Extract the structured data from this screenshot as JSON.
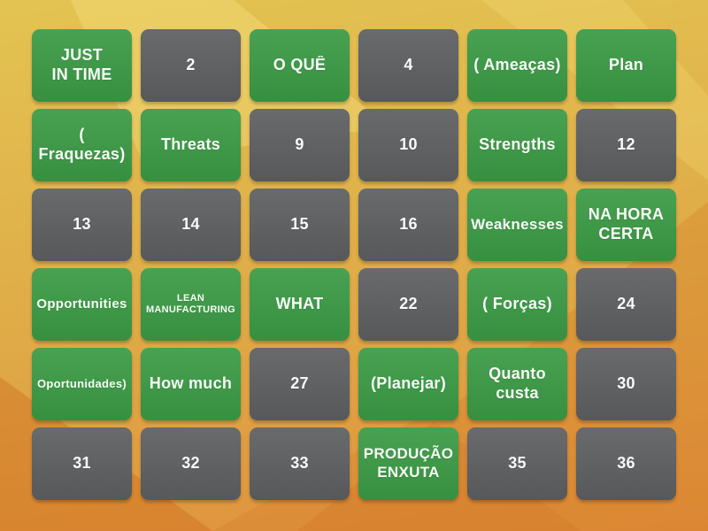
{
  "theme": {
    "background_top": "#e3c452",
    "background_mid": "#dfaa47",
    "background_bottom": "#e08f3c",
    "tile_revealed_color": "#3b9a45",
    "tile_hidden_color": "#5d5f61",
    "tile_text_color": "#f7fcf7"
  },
  "board": {
    "columns": 6,
    "rows": 6,
    "tiles": [
      {
        "label": "JUST\nIN TIME",
        "state": "revealed"
      },
      {
        "label": "2",
        "state": "hidden"
      },
      {
        "label": "O QUÊ",
        "state": "revealed"
      },
      {
        "label": "4",
        "state": "hidden"
      },
      {
        "label": "( Ameaças)",
        "state": "revealed"
      },
      {
        "label": "Plan",
        "state": "revealed"
      },
      {
        "label": "(\nFraquezas)",
        "state": "revealed"
      },
      {
        "label": "Threats",
        "state": "revealed"
      },
      {
        "label": "9",
        "state": "hidden"
      },
      {
        "label": "10",
        "state": "hidden"
      },
      {
        "label": "Strengths",
        "state": "revealed"
      },
      {
        "label": "12",
        "state": "hidden"
      },
      {
        "label": "13",
        "state": "hidden"
      },
      {
        "label": "14",
        "state": "hidden"
      },
      {
        "label": "15",
        "state": "hidden"
      },
      {
        "label": "16",
        "state": "hidden"
      },
      {
        "label": "Weaknesses",
        "state": "revealed"
      },
      {
        "label": "NA HORA\nCERTA",
        "state": "revealed"
      },
      {
        "label": "Opportunities",
        "state": "revealed"
      },
      {
        "label": "LEAN\nMANUFACTURING",
        "state": "revealed"
      },
      {
        "label": "WHAT",
        "state": "revealed"
      },
      {
        "label": "22",
        "state": "hidden"
      },
      {
        "label": "( Forças)",
        "state": "revealed"
      },
      {
        "label": "24",
        "state": "hidden"
      },
      {
        "label": "Oportunidades)",
        "state": "revealed"
      },
      {
        "label": "How much",
        "state": "revealed"
      },
      {
        "label": "27",
        "state": "hidden"
      },
      {
        "label": "(Planejar)",
        "state": "revealed"
      },
      {
        "label": "Quanto\ncusta",
        "state": "revealed"
      },
      {
        "label": "30",
        "state": "hidden"
      },
      {
        "label": "31",
        "state": "hidden"
      },
      {
        "label": "32",
        "state": "hidden"
      },
      {
        "label": "33",
        "state": "hidden"
      },
      {
        "label": "PRODUÇÃO\nENXUTA",
        "state": "revealed"
      },
      {
        "label": "35",
        "state": "hidden"
      },
      {
        "label": "36",
        "state": "hidden"
      }
    ]
  }
}
